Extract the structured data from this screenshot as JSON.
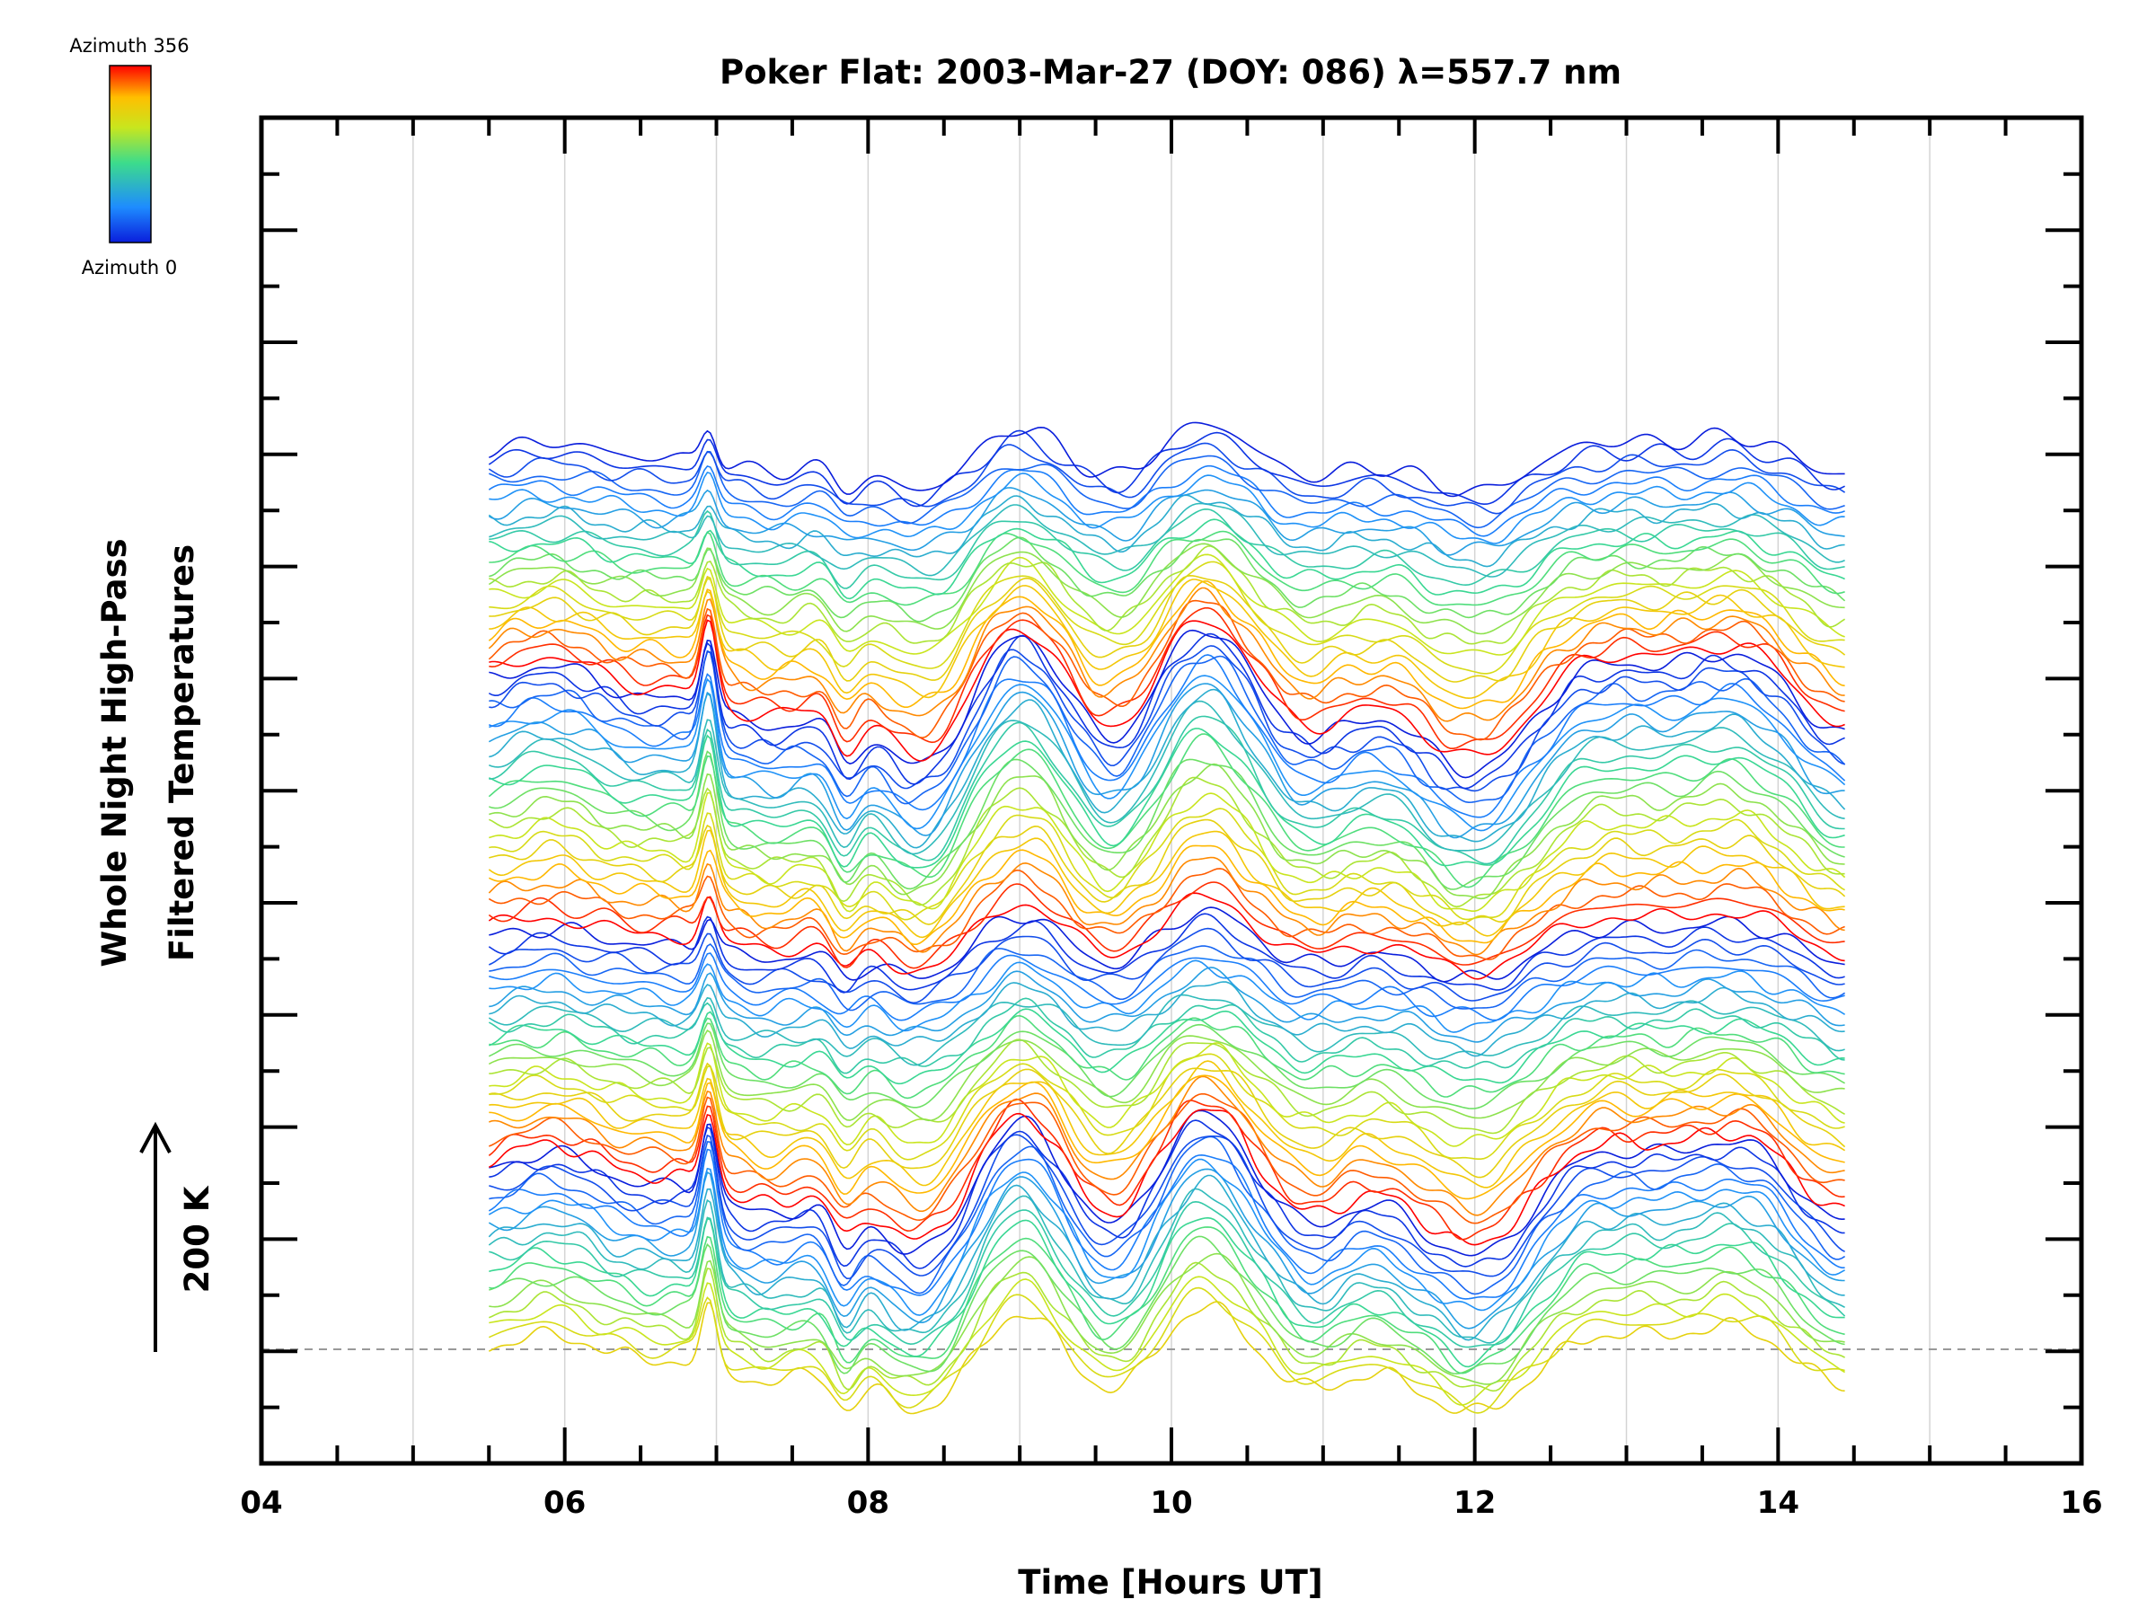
{
  "chart_data": {
    "type": "line",
    "title": "Poker Flat: 2003-Mar-27 (DOY: 086) λ=557.7 nm",
    "xlabel": "Time [Hours UT]",
    "ylabel_line1": "Whole Night High-Pass",
    "ylabel_line2": "Filtered Temperatures",
    "scale_label": "200 K",
    "xlim": [
      4,
      16
    ],
    "x_tick_labels": [
      "04",
      "06",
      "08",
      "10",
      "12",
      "14",
      "16"
    ],
    "x_tick_values": [
      4,
      6,
      8,
      10,
      12,
      14,
      16
    ],
    "x_gridlines": [
      5,
      6,
      7,
      8,
      9,
      10,
      11,
      12,
      13,
      14,
      15
    ],
    "data_time_range": [
      5.5,
      14.45
    ],
    "grid": "vertical",
    "baseline_dashed": true,
    "colorbar": {
      "top_label": "Azimuth 356",
      "bottom_label": "Azimuth 0",
      "colormap": "rainbow",
      "colors": [
        "#ff0000",
        "#ffbf00",
        "#c8e61e",
        "#3cdc8c",
        "#1e8cff",
        "#0a1edc"
      ]
    },
    "series_note": "Stacked traces, one per azimuth, colored by azimuth"
  }
}
